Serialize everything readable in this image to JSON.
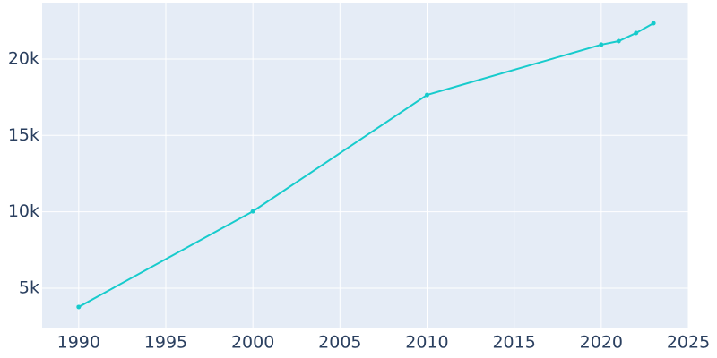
{
  "chart_data": {
    "type": "line",
    "x": [
      1990,
      2000,
      2010,
      2020,
      2021,
      2022,
      2023
    ],
    "series": [
      {
        "color": "#17cbcc",
        "values": [
          3770,
          10030,
          17650,
          20940,
          21170,
          21700,
          22340
        ]
      }
    ],
    "xlim": [
      1987.9,
      2025
    ],
    "xticks": [
      1990,
      1995,
      2000,
      2005,
      2010,
      2015,
      2020,
      2025
    ],
    "ylim": [
      2360,
      23690
    ],
    "yticks": [
      {
        "value": 5000,
        "label": "5k"
      },
      {
        "value": 10000,
        "label": "10k"
      },
      {
        "value": 15000,
        "label": "15k"
      },
      {
        "value": 20000,
        "label": "20k"
      }
    ],
    "grid": true
  }
}
